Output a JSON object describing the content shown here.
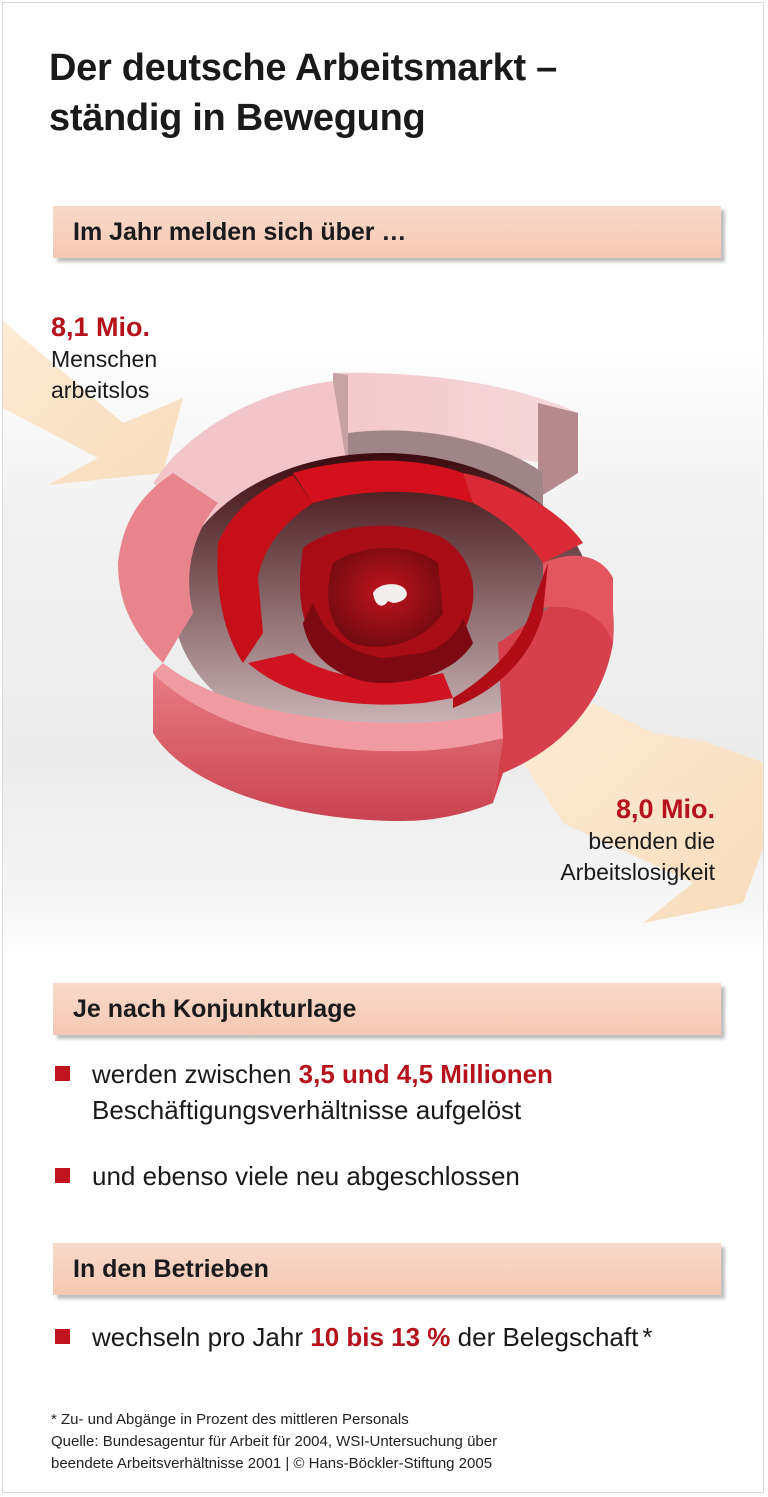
{
  "title": {
    "line1": "Der deutsche Arbeitsmarkt –",
    "line2": "ständig in Bewegung"
  },
  "section1": {
    "heading": "Im Jahr melden sich über …",
    "inflow": {
      "value": "8,1 Mio.",
      "line1": "Menschen",
      "line2": "arbeitslos"
    },
    "outflow": {
      "value": "8,0 Mio.",
      "line1": "beenden die",
      "line2": "Arbeitslosigkeit"
    }
  },
  "section2": {
    "heading": "Je nach Konjunkturlage",
    "bullet1": {
      "pre": "werden zwischen ",
      "highlight": "3,5 und 4,5 Millionen",
      "line2": "Beschäftigungsverhältnisse aufgelöst"
    },
    "bullet2": {
      "text": "und ebenso viele neu abgeschlossen"
    }
  },
  "section3": {
    "heading": "In den Betrieben",
    "bullet1": {
      "pre": "wechseln pro Jahr ",
      "highlight": "10 bis 13 %",
      "post": " der Belegschaft",
      "mark": "*"
    }
  },
  "footnote": {
    "line1": "* Zu- und Abgänge in Prozent des mittleren Personals",
    "line2": "Quelle: Bundesagentur für Arbeit für 2004, WSI-Untersuchung über",
    "line3": "beendete Arbeitsverhältnisse 2001 | © Hans-Böckler-Stiftung 2005"
  },
  "colors": {
    "accent": "#b5121b",
    "banner": "#f6cfbc",
    "arrow": "#fbe3c6"
  },
  "icons": {
    "spiral": "spiral-graphic",
    "inflow_arrow": "arrow-in-icon",
    "outflow_arrow": "arrow-out-icon",
    "bullet": "square-bullet-icon"
  }
}
